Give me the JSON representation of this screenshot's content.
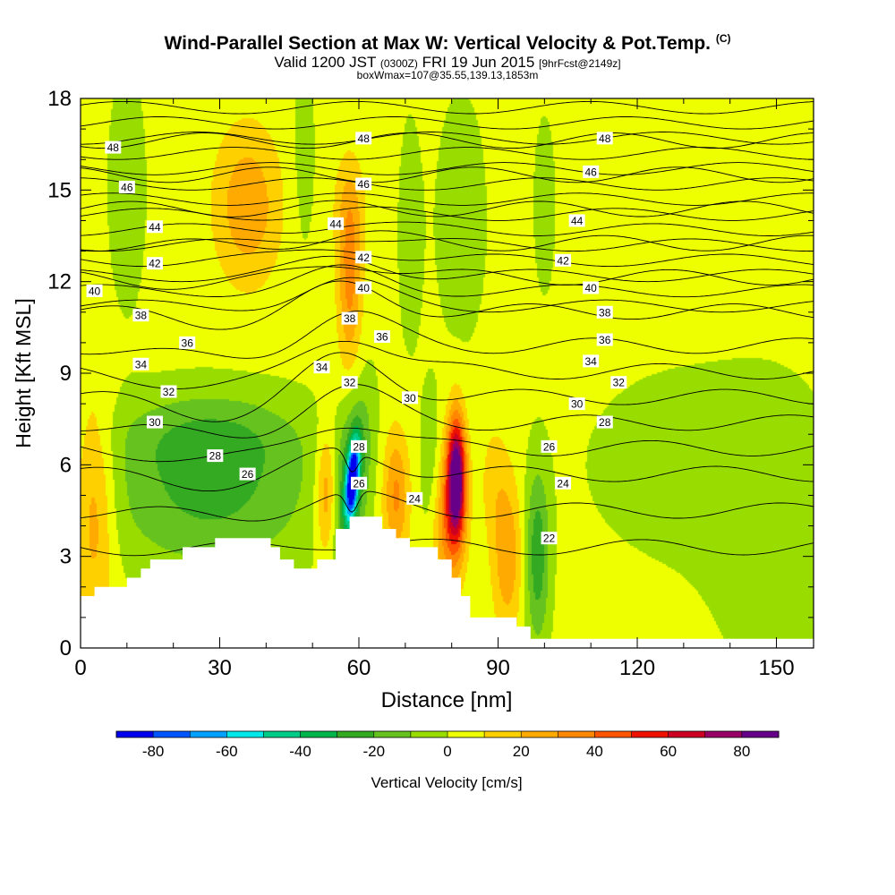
{
  "chart_data": {
    "type": "heatmap",
    "title": "Wind-Parallel Section at Max W: Vertical Velocity & Pot.Temp.",
    "title_mark": "(C)",
    "subtitle": {
      "valid": "Valid 1200 JST",
      "utc": "(0300Z)",
      "date": "FRI 19 Jun 2015",
      "fcst": "[9hrFcst@2149z]"
    },
    "subsubtitle": "boxWmax=107@35.55,139.13,1853m",
    "xlabel": "Distance [nm]",
    "ylabel": "Height [Kft MSL]",
    "xlim": [
      0,
      158
    ],
    "ylim": [
      0,
      18
    ],
    "x_ticks": [
      0,
      30,
      60,
      90,
      120,
      150
    ],
    "y_ticks": [
      0,
      3,
      6,
      9,
      12,
      15,
      18
    ],
    "colorbar": {
      "label": "Vertical Velocity [cm/s]",
      "tick_labels": [
        "-80",
        "-60",
        "-40",
        "-20",
        "0",
        "20",
        "40",
        "60",
        "80"
      ],
      "tick_values": [
        -80,
        -60,
        -40,
        -20,
        0,
        20,
        40,
        60,
        80
      ],
      "bins": [
        -90,
        -80,
        -70,
        -60,
        -50,
        -40,
        -30,
        -20,
        -10,
        0,
        10,
        20,
        30,
        40,
        50,
        60,
        70,
        80,
        90
      ],
      "colors": [
        "#0000ee",
        "#0055ff",
        "#00a0ff",
        "#00e8e8",
        "#00cc88",
        "#00b44c",
        "#33aa22",
        "#66c21e",
        "#99dd00",
        "#eeff00",
        "#ffd000",
        "#ffaa00",
        "#ff8800",
        "#ff5500",
        "#ee1100",
        "#cc0022",
        "#990066",
        "#660088"
      ]
    },
    "background_color": "#eeff00",
    "updraft_features": [
      {
        "x": 81,
        "y": 5.6,
        "peak": 90
      },
      {
        "x": 68,
        "y": 5.0,
        "peak": 30
      },
      {
        "x": 53,
        "y": 5.0,
        "peak": 30
      },
      {
        "x": 3,
        "y": 4.5,
        "peak": 25
      },
      {
        "x": 36,
        "y": 14.5,
        "peak": 25
      },
      {
        "x": 58,
        "y": 12.0,
        "peak": 30
      },
      {
        "x": 92,
        "y": 3.0,
        "peak": 25
      }
    ],
    "downdraft_features": [
      {
        "x": 58.5,
        "y": 5.5,
        "peak": -80
      },
      {
        "x": 98,
        "y": 3.0,
        "peak": -30
      },
      {
        "x": 28,
        "y": 5.0,
        "peak": -25
      },
      {
        "x": 75,
        "y": 5.5,
        "peak": -12
      },
      {
        "x": 150,
        "y": 3.5,
        "peak": -8
      },
      {
        "x": 10,
        "y": 15.0,
        "peak": -8
      },
      {
        "x": 82,
        "y": 14.0,
        "peak": -8
      }
    ],
    "theta_contours": {
      "levels": [
        22,
        24,
        26,
        28,
        30,
        32,
        34,
        36,
        38,
        40,
        42,
        44,
        46,
        48
      ],
      "labels": [
        {
          "text": "48",
          "x": 7,
          "y": 16.4
        },
        {
          "text": "46",
          "x": 10,
          "y": 15.1
        },
        {
          "text": "44",
          "x": 16,
          "y": 13.8
        },
        {
          "text": "42",
          "x": 16,
          "y": 12.6
        },
        {
          "text": "40",
          "x": 3,
          "y": 11.7
        },
        {
          "text": "38",
          "x": 13,
          "y": 10.9
        },
        {
          "text": "36",
          "x": 23,
          "y": 10.0
        },
        {
          "text": "34",
          "x": 13,
          "y": 9.3
        },
        {
          "text": "32",
          "x": 19,
          "y": 8.4
        },
        {
          "text": "30",
          "x": 16,
          "y": 7.4
        },
        {
          "text": "28",
          "x": 29,
          "y": 6.3
        },
        {
          "text": "26",
          "x": 36,
          "y": 5.7
        },
        {
          "text": "48",
          "x": 61,
          "y": 16.7
        },
        {
          "text": "46",
          "x": 61,
          "y": 15.2
        },
        {
          "text": "44",
          "x": 55,
          "y": 13.9
        },
        {
          "text": "42",
          "x": 61,
          "y": 12.8
        },
        {
          "text": "40",
          "x": 61,
          "y": 11.8
        },
        {
          "text": "38",
          "x": 58,
          "y": 10.8
        },
        {
          "text": "36",
          "x": 65,
          "y": 10.2
        },
        {
          "text": "34",
          "x": 52,
          "y": 9.2
        },
        {
          "text": "32",
          "x": 58,
          "y": 8.7
        },
        {
          "text": "28",
          "x": 60,
          "y": 6.6
        },
        {
          "text": "26",
          "x": 60,
          "y": 5.4
        },
        {
          "text": "30",
          "x": 71,
          "y": 8.2
        },
        {
          "text": "24",
          "x": 72,
          "y": 4.9
        },
        {
          "text": "48",
          "x": 113,
          "y": 16.7
        },
        {
          "text": "46",
          "x": 110,
          "y": 15.6
        },
        {
          "text": "44",
          "x": 107,
          "y": 14.0
        },
        {
          "text": "42",
          "x": 104,
          "y": 12.7
        },
        {
          "text": "40",
          "x": 110,
          "y": 11.8
        },
        {
          "text": "38",
          "x": 113,
          "y": 11.0
        },
        {
          "text": "36",
          "x": 113,
          "y": 10.1
        },
        {
          "text": "34",
          "x": 110,
          "y": 9.4
        },
        {
          "text": "32",
          "x": 116,
          "y": 8.7
        },
        {
          "text": "30",
          "x": 107,
          "y": 8.0
        },
        {
          "text": "28",
          "x": 113,
          "y": 7.4
        },
        {
          "text": "26",
          "x": 101,
          "y": 6.6
        },
        {
          "text": "24",
          "x": 104,
          "y": 5.4
        },
        {
          "text": "22",
          "x": 101,
          "y": 3.6
        }
      ]
    },
    "terrain_profile": [
      [
        0,
        1.7
      ],
      [
        3,
        1.7
      ],
      [
        3,
        2.0
      ],
      [
        10,
        2.0
      ],
      [
        10,
        2.3
      ],
      [
        13,
        2.3
      ],
      [
        13,
        2.6
      ],
      [
        15,
        2.6
      ],
      [
        15,
        2.9
      ],
      [
        22,
        2.9
      ],
      [
        22,
        3.3
      ],
      [
        29,
        3.3
      ],
      [
        29,
        3.6
      ],
      [
        41,
        3.6
      ],
      [
        41,
        3.3
      ],
      [
        43,
        3.3
      ],
      [
        43,
        2.9
      ],
      [
        46,
        2.9
      ],
      [
        46,
        2.6
      ],
      [
        51,
        2.6
      ],
      [
        51,
        2.9
      ],
      [
        55,
        2.9
      ],
      [
        55,
        3.9
      ],
      [
        58,
        3.9
      ],
      [
        58,
        4.3
      ],
      [
        65,
        4.3
      ],
      [
        65,
        3.9
      ],
      [
        68,
        3.9
      ],
      [
        68,
        3.6
      ],
      [
        71,
        3.6
      ],
      [
        71,
        3.3
      ],
      [
        77,
        3.3
      ],
      [
        77,
        2.9
      ],
      [
        80,
        2.9
      ],
      [
        80,
        2.3
      ],
      [
        82,
        2.3
      ],
      [
        82,
        1.7
      ],
      [
        84,
        1.7
      ],
      [
        84,
        1.0
      ],
      [
        94,
        1.0
      ],
      [
        94,
        0.7
      ],
      [
        97,
        0.7
      ],
      [
        97,
        0.3
      ],
      [
        158,
        0.3
      ]
    ]
  }
}
